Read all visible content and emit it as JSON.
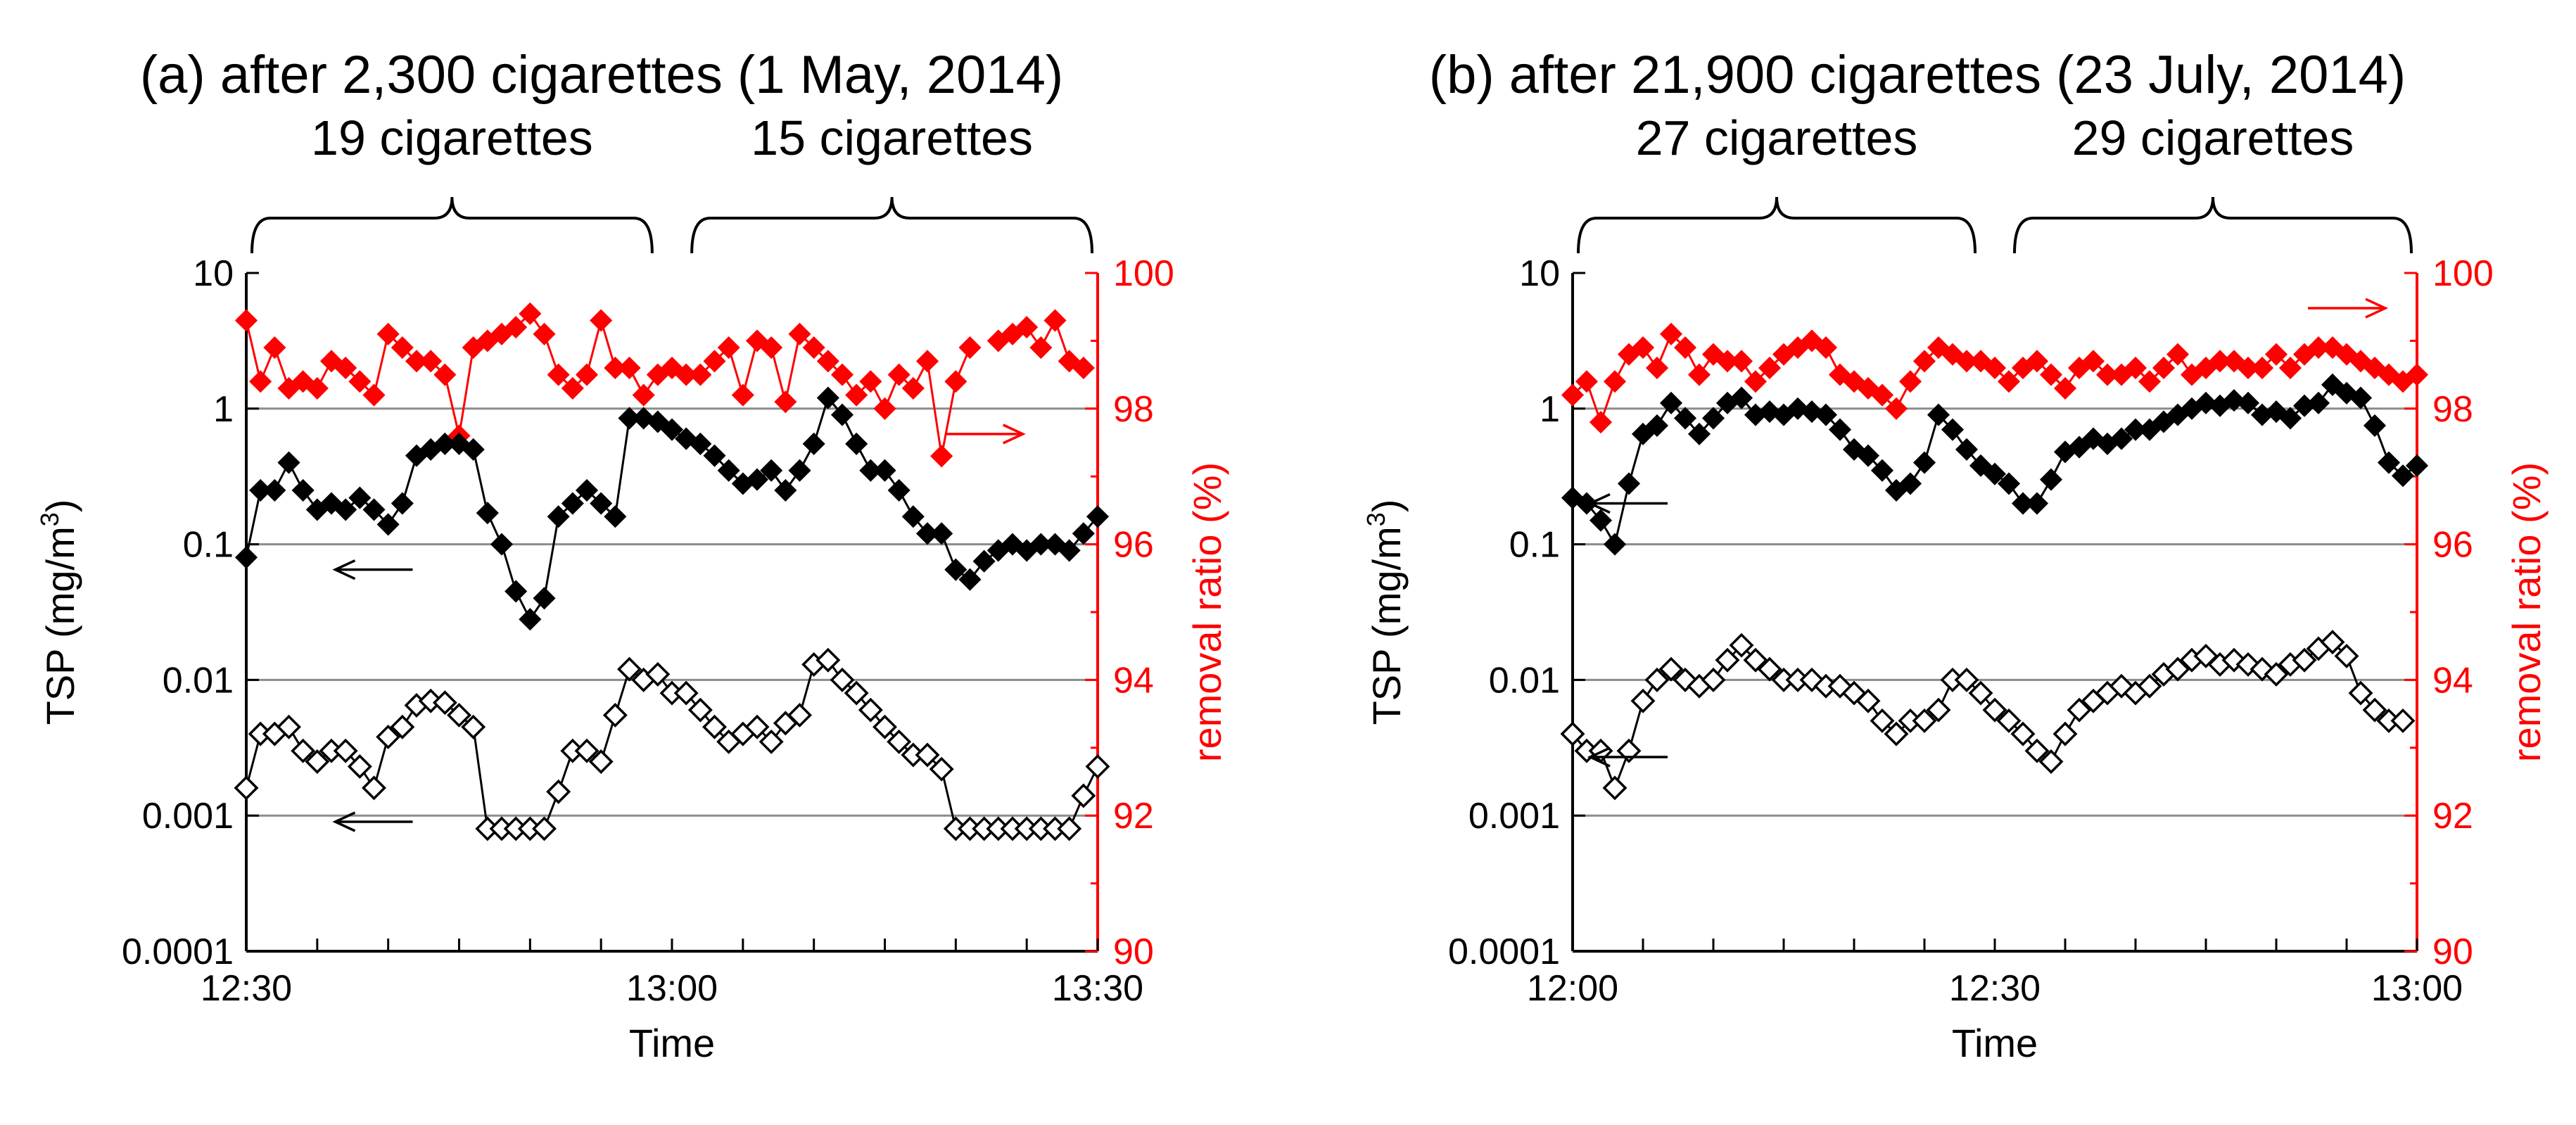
{
  "chart_data": [
    {
      "type": "scatter",
      "panel": "a",
      "title": "(a) after 2,300 cigarettes (1 May, 2014)",
      "xlabel": "Time",
      "ylabel_left": "TSP (mg/m3)",
      "ylabel_left_prefix": "TSP (mg/m",
      "ylabel_left_sup": "3",
      "ylabel_left_suffix": ")",
      "ylabel_right": "removal ratio (%)",
      "xlim": [
        0,
        60
      ],
      "x_ticks": [
        0,
        5,
        10,
        15,
        20,
        25,
        30,
        35,
        40,
        45,
        50,
        55,
        60
      ],
      "x_tick_labels": [
        {
          "x": 0,
          "label": "12:30"
        },
        {
          "x": 30,
          "label": "13:00"
        },
        {
          "x": 60,
          "label": "13:30"
        }
      ],
      "ylim_left": [
        0.0001,
        10
      ],
      "y_left_scale": "log",
      "y_left_ticks": [
        10,
        1,
        0.1,
        0.01,
        0.001,
        0.0001
      ],
      "y_left_tick_labels": [
        "10",
        "1",
        "0.1",
        "0.01",
        "0.001",
        "0.0001"
      ],
      "ylim_right": [
        90,
        100
      ],
      "y_right_tick_labels": [
        "100",
        "98",
        "96",
        "94",
        "92",
        "90"
      ],
      "gridlines_y": [
        1,
        0.1,
        0.01,
        0.001
      ],
      "groups": [
        {
          "label": "19 cigarettes",
          "x_start": 0,
          "x_end": 29
        },
        {
          "label": "15 cigarettes",
          "x_start": 31,
          "x_end": 60
        }
      ],
      "arrows": [
        {
          "series": "removal_ratio",
          "direction": "right",
          "x": 52,
          "tsp": 0.65
        },
        {
          "series": "tsp_inlet",
          "direction": "left",
          "x": 9,
          "tsp": 0.065
        },
        {
          "series": "tsp_outlet",
          "direction": "left",
          "x": 9,
          "tsp": 0.0009
        }
      ],
      "series": [
        {
          "name": "removal ratio (%)",
          "axis": "right",
          "color": "#ff0000",
          "marker": "filled-diamond",
          "x": [
            0,
            1,
            2,
            3,
            4,
            5,
            6,
            7,
            8,
            9,
            10,
            11,
            12,
            13,
            14,
            15,
            16,
            17,
            18,
            19,
            20,
            21,
            22,
            23,
            24,
            25,
            26,
            27,
            28,
            29,
            30,
            31,
            32,
            33,
            34,
            35,
            36,
            37,
            38,
            39,
            40,
            41,
            42,
            43,
            44,
            45,
            46,
            47,
            48,
            49,
            50,
            51,
            52,
            53,
            54,
            55,
            56,
            57,
            58,
            59,
            60
          ],
          "values": [
            99.3,
            98.4,
            98.9,
            98.3,
            98.4,
            98.3,
            98.7,
            98.6,
            98.4,
            98.2,
            99.1,
            98.9,
            98.7,
            98.7,
            98.5,
            97.6,
            98.9,
            99.0,
            99.1,
            99.2,
            99.4,
            99.1,
            98.5,
            98.3,
            98.5,
            99.3,
            98.6,
            98.6,
            98.2,
            98.5,
            98.6,
            98.5,
            98.5,
            98.7,
            98.9,
            98.2,
            99.0,
            98.9,
            98.1,
            99.1,
            98.9,
            98.7,
            98.5,
            98.2,
            98.4,
            98.0,
            98.5,
            98.3,
            98.7,
            97.3,
            98.4,
            98.9,
            null,
            99.0,
            99.1,
            99.2,
            98.9,
            99.3,
            98.7,
            98.6,
            null
          ]
        },
        {
          "name": "TSP (filled)",
          "axis": "left",
          "color": "#000000",
          "marker": "filled-diamond",
          "x": [
            0,
            1,
            2,
            3,
            4,
            5,
            6,
            7,
            8,
            9,
            10,
            11,
            12,
            13,
            14,
            15,
            16,
            17,
            18,
            19,
            20,
            21,
            22,
            23,
            24,
            25,
            26,
            27,
            28,
            29,
            30,
            31,
            32,
            33,
            34,
            35,
            36,
            37,
            38,
            39,
            40,
            41,
            42,
            43,
            44,
            45,
            46,
            47,
            48,
            49,
            50,
            51,
            52,
            53,
            54,
            55,
            56,
            57,
            58,
            59,
            60
          ],
          "values": [
            0.08,
            0.25,
            0.25,
            0.4,
            0.25,
            0.18,
            0.2,
            0.18,
            0.22,
            0.18,
            0.14,
            0.2,
            0.45,
            0.5,
            0.55,
            0.55,
            0.5,
            0.17,
            0.1,
            0.045,
            0.028,
            0.04,
            0.16,
            0.2,
            0.25,
            0.2,
            0.16,
            0.85,
            0.85,
            0.8,
            0.7,
            0.6,
            0.55,
            0.45,
            0.35,
            0.28,
            0.3,
            0.35,
            0.25,
            0.35,
            0.55,
            1.2,
            0.9,
            0.55,
            0.35,
            0.35,
            0.25,
            0.16,
            0.12,
            0.12,
            0.065,
            0.055,
            0.075,
            0.09,
            0.1,
            0.09,
            0.1,
            0.1,
            0.09,
            0.12,
            0.16
          ]
        },
        {
          "name": "TSP (open)",
          "axis": "left",
          "color": "#000000",
          "marker": "open-diamond",
          "x": [
            0,
            1,
            2,
            3,
            4,
            5,
            6,
            7,
            8,
            9,
            10,
            11,
            12,
            13,
            14,
            15,
            16,
            17,
            18,
            19,
            20,
            21,
            22,
            23,
            24,
            25,
            26,
            27,
            28,
            29,
            30,
            31,
            32,
            33,
            34,
            35,
            36,
            37,
            38,
            39,
            40,
            41,
            42,
            43,
            44,
            45,
            46,
            47,
            48,
            49,
            50,
            51,
            52,
            53,
            54,
            55,
            56,
            57,
            58,
            59,
            60
          ],
          "values": [
            0.0016,
            0.004,
            0.004,
            0.0045,
            0.003,
            0.0025,
            0.003,
            0.003,
            0.0023,
            0.0016,
            0.0038,
            0.0045,
            0.0065,
            0.007,
            0.0068,
            0.0055,
            0.0045,
            0.0008,
            0.0008,
            0.0008,
            0.0008,
            0.0008,
            0.0015,
            0.003,
            0.003,
            0.0025,
            0.0055,
            0.012,
            0.01,
            0.011,
            0.008,
            0.008,
            0.006,
            0.0045,
            0.0035,
            0.004,
            0.0045,
            0.0035,
            0.0048,
            0.0055,
            0.013,
            0.014,
            0.01,
            0.008,
            0.006,
            0.0045,
            0.0035,
            0.0028,
            0.0028,
            0.0022,
            0.0008,
            0.0008,
            0.0008,
            0.0008,
            0.0008,
            0.0008,
            0.0008,
            0.0008,
            0.0008,
            0.0014,
            0.0023
          ]
        }
      ]
    },
    {
      "type": "scatter",
      "panel": "b",
      "title": "(b) after 21,900 cigarettes (23 July, 2014)",
      "xlabel": "Time",
      "ylabel_left": "TSP (mg/m3)",
      "ylabel_left_prefix": "TSP (mg/m",
      "ylabel_left_sup": "3",
      "ylabel_left_suffix": ")",
      "ylabel_right": "removal ratio (%)",
      "xlim": [
        0,
        60
      ],
      "x_ticks": [
        0,
        5,
        10,
        15,
        20,
        25,
        30,
        35,
        40,
        45,
        50,
        55,
        60
      ],
      "x_tick_labels": [
        {
          "x": 0,
          "label": "12:00"
        },
        {
          "x": 30,
          "label": "12:30"
        },
        {
          "x": 60,
          "label": "13:00"
        }
      ],
      "ylim_left": [
        0.0001,
        10
      ],
      "y_left_scale": "log",
      "y_left_ticks": [
        10,
        1,
        0.1,
        0.01,
        0.001,
        0.0001
      ],
      "y_left_tick_labels": [
        "10",
        "1",
        "0.1",
        "0.01",
        "0.001",
        "0.0001"
      ],
      "ylim_right": [
        90,
        100
      ],
      "y_right_tick_labels": [
        "100",
        "98",
        "96",
        "94",
        "92",
        "90"
      ],
      "gridlines_y": [
        1,
        0.1,
        0.01,
        0.001
      ],
      "groups": [
        {
          "label": "27 cigarettes",
          "x_start": 0,
          "x_end": 29
        },
        {
          "label": "29 cigarettes",
          "x_start": 31,
          "x_end": 60
        }
      ],
      "arrows": [
        {
          "series": "removal_ratio",
          "direction": "right",
          "x": 55,
          "tsp": 5.5
        },
        {
          "series": "tsp_inlet",
          "direction": "left",
          "x": 4,
          "tsp": 0.2
        },
        {
          "series": "tsp_outlet",
          "direction": "left",
          "x": 4,
          "tsp": 0.0027
        }
      ],
      "series": [
        {
          "name": "removal ratio (%)",
          "axis": "right",
          "color": "#ff0000",
          "marker": "filled-diamond",
          "x": [
            0,
            1,
            2,
            3,
            4,
            5,
            6,
            7,
            8,
            9,
            10,
            11,
            12,
            13,
            14,
            15,
            16,
            17,
            18,
            19,
            20,
            21,
            22,
            23,
            24,
            25,
            26,
            27,
            28,
            29,
            30,
            31,
            32,
            33,
            34,
            35,
            36,
            37,
            38,
            39,
            40,
            41,
            42,
            43,
            44,
            45,
            46,
            47,
            48,
            49,
            50,
            51,
            52,
            53,
            54,
            55,
            56,
            57,
            58,
            59,
            60
          ],
          "values": [
            98.2,
            98.4,
            97.8,
            98.4,
            98.8,
            98.9,
            98.6,
            99.1,
            98.9,
            98.5,
            98.8,
            98.7,
            98.7,
            98.4,
            98.6,
            98.8,
            98.9,
            99.0,
            98.9,
            98.5,
            98.4,
            98.3,
            98.2,
            98.0,
            98.4,
            98.7,
            98.9,
            98.8,
            98.7,
            98.7,
            98.6,
            98.4,
            98.6,
            98.7,
            98.5,
            98.3,
            98.6,
            98.7,
            98.5,
            98.5,
            98.6,
            98.4,
            98.6,
            98.8,
            98.5,
            98.6,
            98.7,
            98.7,
            98.6,
            98.6,
            98.8,
            98.6,
            98.8,
            98.9,
            98.9,
            98.8,
            98.7,
            98.6,
            98.5,
            98.4,
            98.5
          ]
        },
        {
          "name": "TSP (filled)",
          "axis": "left",
          "color": "#000000",
          "marker": "filled-diamond",
          "x": [
            0,
            1,
            2,
            3,
            4,
            5,
            6,
            7,
            8,
            9,
            10,
            11,
            12,
            13,
            14,
            15,
            16,
            17,
            18,
            19,
            20,
            21,
            22,
            23,
            24,
            25,
            26,
            27,
            28,
            29,
            30,
            31,
            32,
            33,
            34,
            35,
            36,
            37,
            38,
            39,
            40,
            41,
            42,
            43,
            44,
            45,
            46,
            47,
            48,
            49,
            50,
            51,
            52,
            53,
            54,
            55,
            56,
            57,
            58,
            59,
            60
          ],
          "values": [
            0.22,
            0.2,
            0.15,
            0.1,
            0.28,
            0.65,
            0.75,
            1.1,
            0.85,
            0.65,
            0.85,
            1.1,
            1.2,
            0.9,
            0.95,
            0.9,
            1.0,
            0.95,
            0.9,
            0.7,
            0.5,
            0.45,
            0.35,
            0.25,
            0.28,
            0.4,
            0.9,
            0.7,
            0.5,
            0.38,
            0.33,
            0.28,
            0.2,
            0.2,
            0.3,
            0.48,
            0.52,
            0.6,
            0.55,
            0.6,
            0.7,
            0.7,
            0.8,
            0.9,
            1.0,
            1.1,
            1.05,
            1.15,
            1.1,
            0.9,
            0.95,
            0.85,
            1.05,
            1.1,
            1.5,
            1.3,
            1.2,
            0.75,
            0.4,
            0.32,
            0.38
          ]
        },
        {
          "name": "TSP (open)",
          "axis": "left",
          "color": "#000000",
          "marker": "open-diamond",
          "x": [
            0,
            1,
            2,
            3,
            4,
            5,
            6,
            7,
            8,
            9,
            10,
            11,
            12,
            13,
            14,
            15,
            16,
            17,
            18,
            19,
            20,
            21,
            22,
            23,
            24,
            25,
            26,
            27,
            28,
            29,
            30,
            31,
            32,
            33,
            34,
            35,
            36,
            37,
            38,
            39,
            40,
            41,
            42,
            43,
            44,
            45,
            46,
            47,
            48,
            49,
            50,
            51,
            52,
            53,
            54,
            55,
            56,
            57,
            58,
            59,
            60
          ],
          "values": [
            0.004,
            0.003,
            0.003,
            0.0016,
            0.003,
            0.007,
            0.01,
            0.012,
            0.01,
            0.009,
            0.01,
            0.014,
            0.018,
            0.014,
            0.012,
            0.01,
            0.01,
            0.01,
            0.009,
            0.009,
            0.008,
            0.007,
            0.005,
            0.004,
            0.005,
            0.005,
            0.006,
            0.01,
            0.01,
            0.008,
            0.006,
            0.005,
            0.004,
            0.003,
            0.0025,
            0.004,
            0.006,
            0.007,
            0.008,
            0.009,
            0.008,
            0.009,
            0.011,
            0.012,
            0.014,
            0.015,
            0.013,
            0.014,
            0.013,
            0.012,
            0.011,
            0.013,
            0.014,
            0.017,
            0.019,
            0.015,
            0.008,
            0.006,
            0.005,
            0.005,
            null
          ]
        }
      ]
    }
  ]
}
